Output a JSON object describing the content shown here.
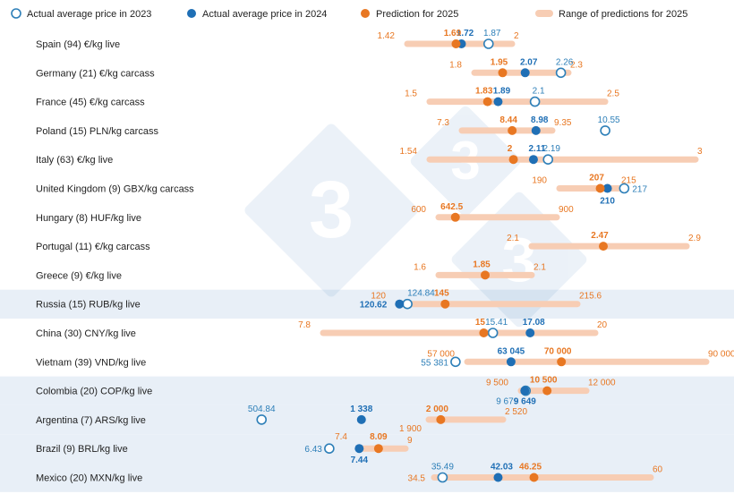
{
  "legend": {
    "a2023": "Actual average price in 2023",
    "a2024": "Actual average price in 2024",
    "p2025": "Prediction for 2025",
    "r2025": "Range of predictions for 2025"
  },
  "colors": {
    "a2023": "#2d7fb8",
    "a2024": "#1f6fb5",
    "p2025": "#e87722",
    "range": "#f7cdb4",
    "band": "#e8eff7",
    "pred_text": "#e87722",
    "actual_text": "#1f6fb5"
  },
  "chart_data": {
    "type": "range-dot",
    "note_scale": "each row uses its own value scale",
    "rows": [
      {
        "label": "Spain (94)  €/kg live",
        "min": 1.42,
        "max": 2,
        "pred": 1.69,
        "a2024": 1.72,
        "a2023": 1.87,
        "t_min": "1.42",
        "t_max": "2",
        "t_pred": "1.69",
        "t_2024": "1.72",
        "t_2023": "1.87"
      },
      {
        "label": "Germany (21) €/kg carcass",
        "min": 1.8,
        "max": 2.3,
        "pred": 1.95,
        "a2024": 2.07,
        "a2023": 2.26,
        "t_min": "1.8",
        "t_max": "2.3",
        "t_pred": "1.95",
        "t_2024": "2.07",
        "t_2023": "2.26"
      },
      {
        "label": "France (45) €/kg carcass",
        "min": 1.5,
        "max": 2.5,
        "pred": 1.83,
        "a2024": 1.89,
        "a2023": 2.1,
        "t_min": "1.5",
        "t_max": "2.5",
        "t_pred": "1.83",
        "t_2024": "1.89",
        "t_2023": "2.1"
      },
      {
        "label": "Poland (15) PLN/kg carcass",
        "min": 7.3,
        "max": 9.35,
        "pred": 8.44,
        "a2024": 8.98,
        "a2023": 10.55,
        "t_min": "7.3",
        "t_max": "9.35",
        "t_pred": "8.44",
        "t_2024": "8.98",
        "t_2023": "10.55"
      },
      {
        "label": "Italy (63) €/kg live",
        "min": 1.54,
        "max": 3,
        "pred": 2,
        "a2024": 2.11,
        "a2023": 2.19,
        "t_min": "1.54",
        "t_max": "3",
        "t_pred": "2",
        "t_2024": "2.11",
        "t_2023": "2.19"
      },
      {
        "label": "United Kingdom (9) GBX/kg carcass",
        "min": 190,
        "max": 215,
        "pred": 207,
        "a2024": 210,
        "a2023": 217,
        "t_min": "190",
        "t_max": "215",
        "t_pred": "207",
        "t_2024": "210",
        "t_2023": "217"
      },
      {
        "label": "Hungary (8) HUF/kg live",
        "min": 600,
        "max": 900,
        "pred": 642.5,
        "a2024": null,
        "a2023": null,
        "t_min": "600",
        "t_max": "900",
        "t_pred": "642.5",
        "t_2024": "",
        "t_2023": ""
      },
      {
        "label": "Portugal (11) €/kg carcass",
        "min": 2.1,
        "max": 2.9,
        "pred": 2.47,
        "a2024": null,
        "a2023": null,
        "t_min": "2.1",
        "t_max": "2.9",
        "t_pred": "2.47",
        "t_2024": "",
        "t_2023": ""
      },
      {
        "label": "Greece (9) €/kg live",
        "min": 1.6,
        "max": 2.1,
        "pred": 1.85,
        "a2024": null,
        "a2023": null,
        "t_min": "1.6",
        "t_max": "2.1",
        "t_pred": "1.85",
        "t_2024": "",
        "t_2023": ""
      },
      {
        "label": "Russia (15) RUB/kg live",
        "min": 120,
        "max": 215.6,
        "pred": 145,
        "a2024": 120.62,
        "a2023": 124.84,
        "t_min": "120",
        "t_max": "215.6",
        "t_pred": "145",
        "t_2024": "120.62",
        "t_2023": "124.84"
      },
      {
        "label": "China (30) CNY/kg live",
        "min": 7.8,
        "max": 20,
        "pred": 15,
        "a2024": 17.08,
        "a2023": 15.41,
        "t_min": "7.8",
        "t_max": "20",
        "t_pred": "15",
        "t_2024": "17.08",
        "t_2023": "15.41"
      },
      {
        "label": "Vietnam (39) VND/kg live",
        "min": 57000,
        "max": 90000,
        "pred": 70000,
        "a2024": 63045,
        "a2023": 55381,
        "t_min": "57 000",
        "t_max": "90 000",
        "t_pred": "70 000",
        "t_2024": "63 045",
        "t_2023": "55 381"
      },
      {
        "label": "Colombia (20) COP/kg live",
        "min": 9500,
        "max": 12000,
        "pred": 10500,
        "a2024": 9649,
        "a2023": 9679,
        "t_min": "9 500",
        "t_max": "12 000",
        "t_pred": "10 500",
        "t_2024": "9 649",
        "t_2023": "9 679"
      },
      {
        "label": "Argentina (7) ARS/kg live",
        "min": 1900,
        "max": 2520,
        "pred": 2000,
        "a2024": 1338,
        "a2023": 504.84,
        "t_min": "1 900",
        "t_max": "2 520",
        "t_pred": "2 000",
        "t_2024": "1 338",
        "t_2023": "504.84"
      },
      {
        "label": "Brazil (9) BRL/kg live",
        "min": 7.4,
        "max": 9,
        "pred": 8.09,
        "a2024": 7.44,
        "a2023": 6.43,
        "t_min": "7.4",
        "t_max": "9",
        "t_pred": "8.09",
        "t_2024": "7.44",
        "t_2023": "6.43"
      },
      {
        "label": "Mexico (20) MXN/kg live",
        "min": 34.5,
        "max": 60,
        "pred": 46.25,
        "a2024": 42.03,
        "a2023": 35.49,
        "t_min": "34.5",
        "t_max": "60",
        "t_pred": "46.25",
        "t_2024": "42.03",
        "t_2023": "35.49"
      }
    ],
    "shaded_rows": [
      9,
      12,
      13,
      14,
      15
    ]
  }
}
